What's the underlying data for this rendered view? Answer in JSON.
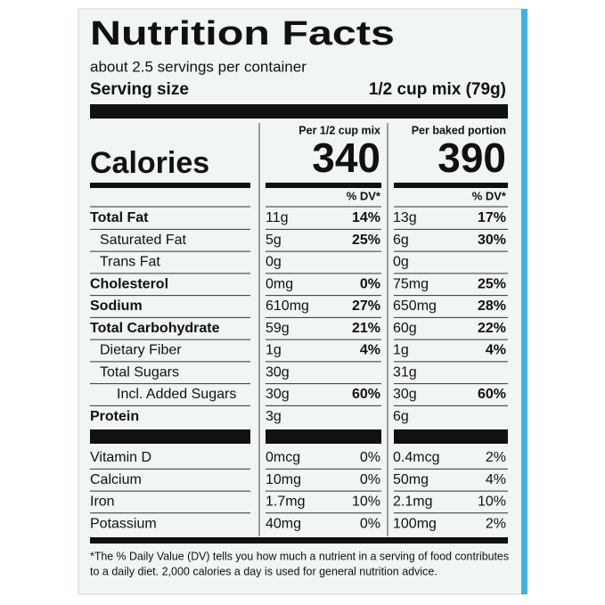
{
  "title": "Nutrition Facts",
  "servings": "about 2.5 servings per container",
  "serving_size_label": "Serving size",
  "serving_size_value": "1/2 cup mix (79g)",
  "calories_label": "Calories",
  "columns": [
    {
      "header": "Per 1/2 cup mix",
      "calories": 340,
      "dv_header": "% DV*"
    },
    {
      "header": "Per baked portion",
      "calories": 390,
      "dv_header": "% DV*"
    }
  ],
  "nutrients": [
    {
      "name": "Total Fat",
      "cells": [
        [
          "11g",
          "14%"
        ],
        [
          "13g",
          "17%"
        ]
      ]
    },
    {
      "name": "Saturated Fat",
      "cells": [
        [
          "5g",
          "25%"
        ],
        [
          "6g",
          "30%"
        ]
      ]
    },
    {
      "name": "Trans Fat",
      "cells": [
        [
          "0g"
        ],
        [
          "0g"
        ]
      ]
    },
    {
      "name": "Cholesterol",
      "cells": [
        [
          "0mg",
          "0%"
        ],
        [
          "75mg",
          "25%"
        ]
      ]
    },
    {
      "name": "Sodium",
      "cells": [
        [
          "610mg",
          "27%"
        ],
        [
          "650mg",
          "28%"
        ]
      ]
    },
    {
      "name": "Total Carbohydrate",
      "cells": [
        [
          "59g",
          "21%"
        ],
        [
          "60g",
          "22%"
        ]
      ]
    },
    {
      "name": "Dietary Fiber",
      "cells": [
        [
          "1g",
          "4%"
        ],
        [
          "1g",
          "4%"
        ]
      ]
    },
    {
      "name": "Total Sugars",
      "cells": [
        [
          "30g"
        ],
        [
          "31g"
        ]
      ]
    },
    {
      "name": "Incl. Added Sugars",
      "cells": [
        [
          "30g",
          "60%"
        ],
        [
          "30g",
          "60%"
        ]
      ]
    },
    {
      "name": "Protein",
      "cells": [
        [
          "3g"
        ],
        [
          "6g"
        ]
      ]
    }
  ],
  "vitamins": [
    {
      "name": "Vitamin D",
      "cells": [
        [
          "0mcg",
          "0%"
        ],
        [
          "0.4mcg",
          "2%"
        ]
      ]
    },
    {
      "name": "Calcium",
      "cells": [
        [
          "10mg",
          "0%"
        ],
        [
          "50mg",
          "4%"
        ]
      ]
    },
    {
      "name": "Iron",
      "cells": [
        [
          "1.7mg",
          "10%"
        ],
        [
          "2.1mg",
          "10%"
        ]
      ]
    },
    {
      "name": "Potassium",
      "cells": [
        [
          "40mg",
          "0%"
        ],
        [
          "100mg",
          "2%"
        ]
      ]
    }
  ],
  "footnote": [
    "*The % Daily Value (DV) tells you how much a nutrient in a serving of food contributes",
    "to a daily diet. 2,000 calories a day is used for general nutrition advice."
  ]
}
